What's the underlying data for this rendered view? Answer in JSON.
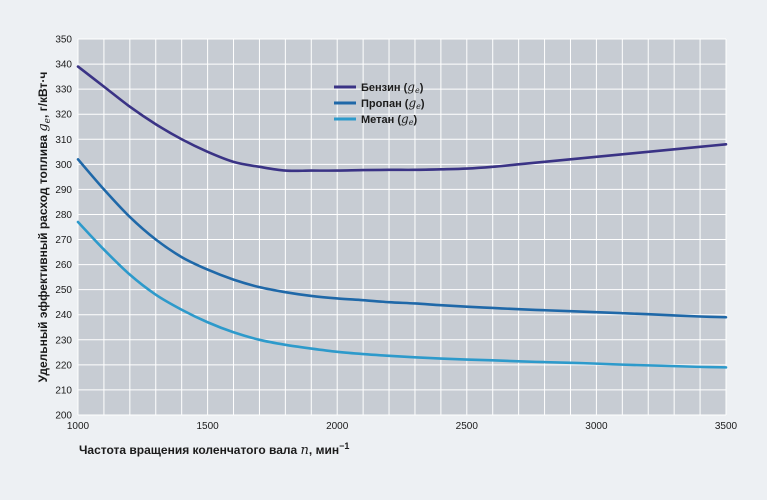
{
  "chart_data": {
    "type": "line",
    "xlabel": {
      "main": "Частота вращения коленчатого вала ",
      "var": "n",
      "unit": ", мин",
      "sup": "−1"
    },
    "ylabel": {
      "main": "Удельный эффективный расход топлива ",
      "var": "g",
      "sub": "e",
      "unit": ", г/кВт·ч"
    },
    "xlim": [
      1000,
      3500
    ],
    "ylim": [
      200,
      350
    ],
    "x_ticks": [
      "1000",
      "1500",
      "2000",
      "2500",
      "3000",
      "3500"
    ],
    "y_ticks": [
      "200",
      "210",
      "220",
      "230",
      "240",
      "250",
      "260",
      "270",
      "280",
      "290",
      "300",
      "310",
      "320",
      "330",
      "340",
      "350"
    ],
    "grid": true,
    "legend_position": "top-center",
    "x": [
      1000,
      1100,
      1200,
      1300,
      1400,
      1500,
      1600,
      1700,
      1800,
      1900,
      2000,
      2100,
      2200,
      2300,
      2400,
      2500,
      2600,
      2700,
      2800,
      2900,
      3000,
      3100,
      3200,
      3300,
      3400,
      3500
    ],
    "series": [
      {
        "name": "Бензин",
        "var": "g",
        "sub": "e",
        "color": "#3a3385",
        "values": [
          339,
          331,
          323,
          316,
          310,
          305,
          301,
          299,
          297.5,
          297.5,
          297.5,
          297.7,
          297.8,
          297.8,
          298,
          298.3,
          299,
          300,
          301,
          302,
          303,
          304,
          305,
          306,
          307,
          308
        ]
      },
      {
        "name": "Пропан",
        "var": "g",
        "sub": "e",
        "color": "#1f68a8",
        "values": [
          302,
          290,
          279,
          270,
          263,
          258,
          254,
          251,
          249,
          247.5,
          246.5,
          245.8,
          245,
          244.5,
          243.8,
          243.2,
          242.7,
          242.2,
          241.8,
          241.4,
          241,
          240.6,
          240.2,
          239.7,
          239.3,
          239
        ]
      },
      {
        "name": "Метан",
        "var": "g",
        "sub": "e",
        "color": "#2d9acb",
        "values": [
          277,
          266,
          256,
          248,
          242,
          237,
          233,
          230,
          228,
          226.5,
          225.2,
          224.3,
          223.6,
          223,
          222.5,
          222.1,
          221.8,
          221.4,
          221.1,
          220.8,
          220.5,
          220.1,
          219.8,
          219.5,
          219.2,
          219
        ]
      }
    ]
  }
}
